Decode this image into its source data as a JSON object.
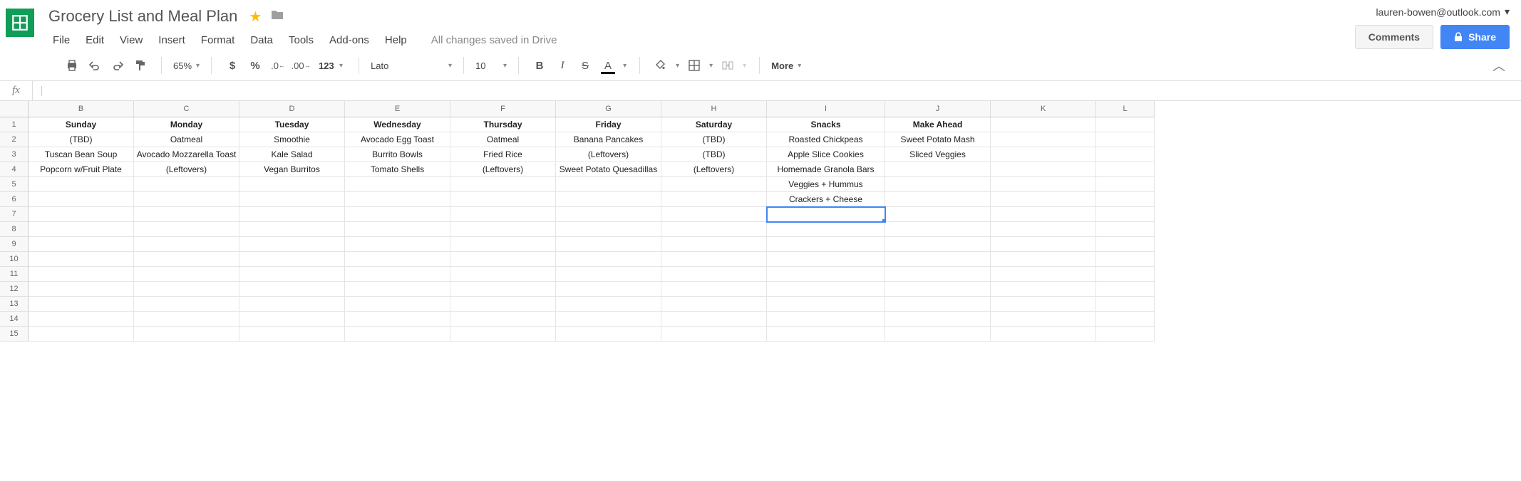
{
  "document": {
    "title": "Grocery List and Meal Plan",
    "starred": true,
    "save_status": "All changes saved in Drive"
  },
  "account": {
    "email": "lauren-bowen@outlook.com"
  },
  "buttons": {
    "comments": "Comments",
    "share": "Share"
  },
  "menus": [
    "File",
    "Edit",
    "View",
    "Insert",
    "Format",
    "Data",
    "Tools",
    "Add-ons",
    "Help"
  ],
  "toolbar": {
    "zoom": "65%",
    "font": "Lato",
    "font_size": "10",
    "more_label": "More",
    "number_format_label": "123",
    "currency_symbol": "$",
    "percent_symbol": "%"
  },
  "formula_bar": {
    "fx": "fx",
    "value": ""
  },
  "grid": {
    "visible_columns": [
      "B",
      "C",
      "D",
      "E",
      "F",
      "G",
      "H",
      "I",
      "J",
      "K",
      "L"
    ],
    "visible_row_count": 15,
    "selected_cell": {
      "row": 7,
      "col": "I"
    },
    "column_widths": {
      "B": 148,
      "C": 148,
      "D": 148,
      "E": 148,
      "F": 148,
      "G": 148,
      "H": 148,
      "I": 166,
      "J": 148,
      "K": 148,
      "L": 82
    },
    "header_row": 1,
    "data": {
      "1": {
        "B": "Sunday",
        "C": "Monday",
        "D": "Tuesday",
        "E": "Wednesday",
        "F": "Thursday",
        "G": "Friday",
        "H": "Saturday",
        "I": "Snacks",
        "J": "Make Ahead"
      },
      "2": {
        "B": "(TBD)",
        "C": "Oatmeal",
        "D": "Smoothie",
        "E": "Avocado Egg Toast",
        "F": "Oatmeal",
        "G": "Banana Pancakes",
        "H": "(TBD)",
        "I": "Roasted Chickpeas",
        "J": "Sweet Potato Mash"
      },
      "3": {
        "B": "Tuscan Bean Soup",
        "C": "Avocado Mozzarella Toast",
        "D": "Kale Salad",
        "E": "Burrito Bowls",
        "F": "Fried Rice",
        "G": "(Leftovers)",
        "H": "(TBD)",
        "I": "Apple Slice Cookies",
        "J": "Sliced Veggies"
      },
      "4": {
        "B": "Popcorn w/Fruit Plate",
        "C": "(Leftovers)",
        "D": "Vegan Burritos",
        "E": "Tomato Shells",
        "F": "(Leftovers)",
        "G": "Sweet Potato Quesadillas",
        "H": "(Leftovers)",
        "I": "Homemade Granola Bars"
      },
      "5": {
        "I": "Veggies + Hummus"
      },
      "6": {
        "I": "Crackers + Cheese"
      }
    }
  },
  "colors": {
    "brand_green": "#0f9d58",
    "share_blue": "#4285f4",
    "star_yellow": "#fbbc04"
  }
}
